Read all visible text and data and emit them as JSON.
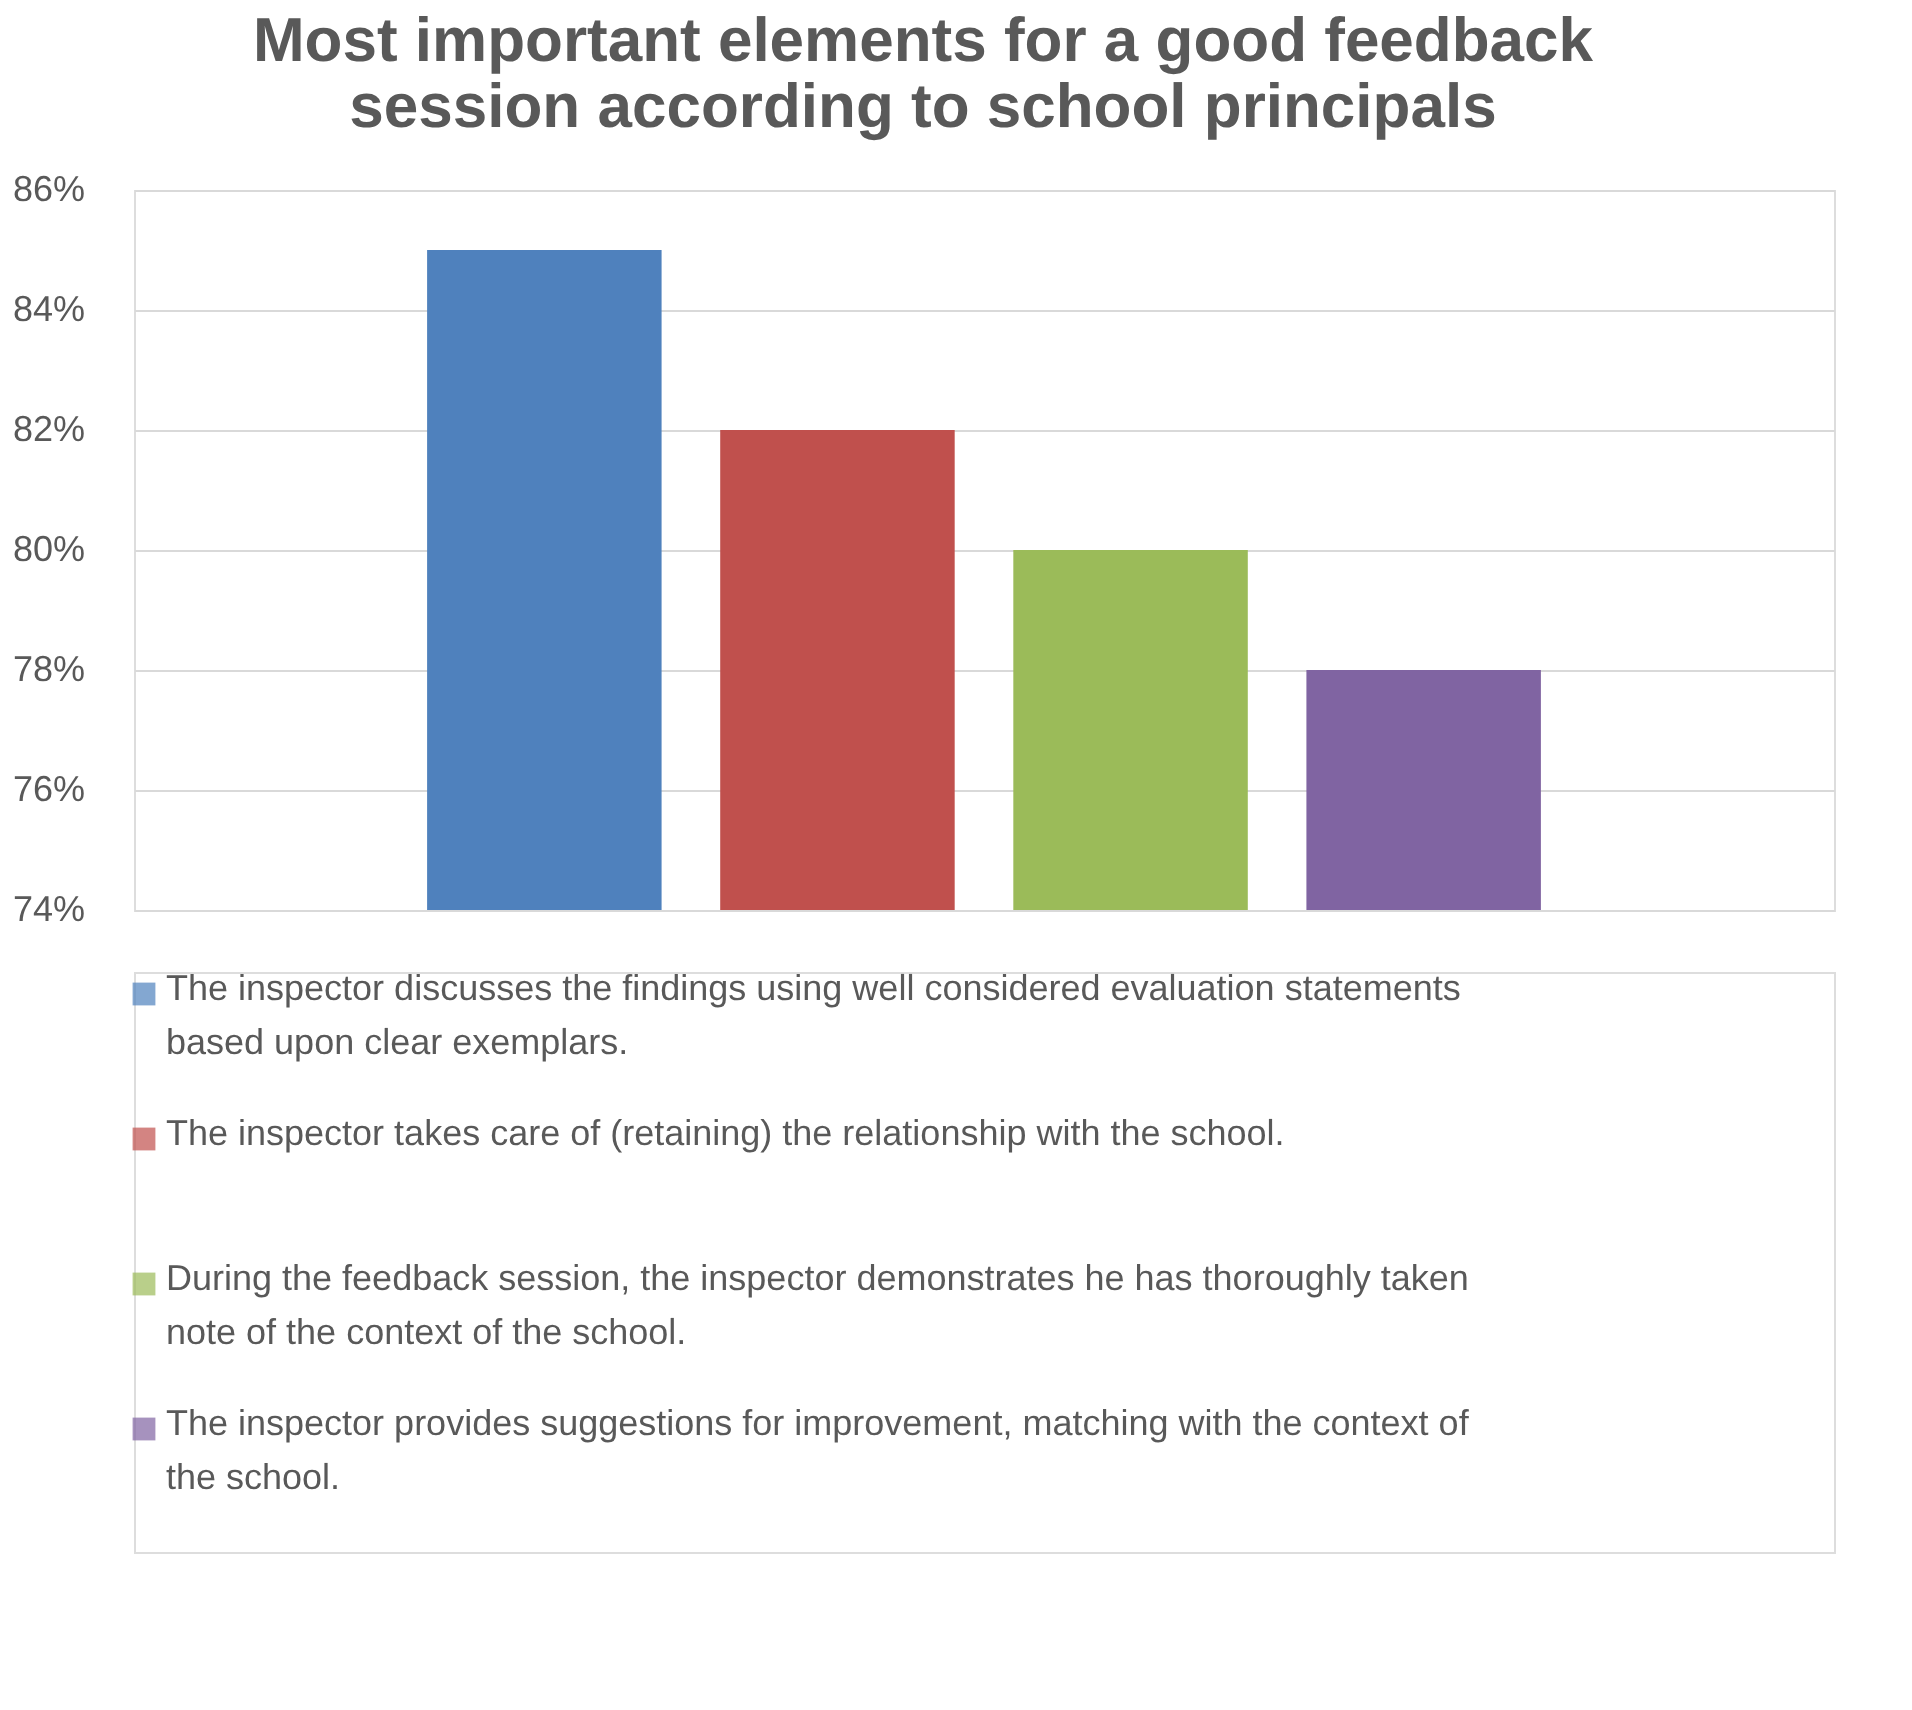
{
  "chart_data": {
    "type": "bar",
    "title": "Most important elements for a good feedback session according to school principals",
    "categories": [
      null
    ],
    "series": [
      {
        "name": "The inspector discusses the findings using well considered evaluation statements based upon clear exemplars.",
        "color": "#4f81bd",
        "values": [
          85
        ]
      },
      {
        "name": "The inspector takes care of (retaining) the relationship with the school.",
        "color": "#c0504d",
        "values": [
          82
        ]
      },
      {
        "name": "During the feedback session, the inspector demonstrates he has thoroughly taken note of the context of the school.",
        "color": "#9bbb59",
        "values": [
          80
        ]
      },
      {
        "name": "The inspector provides suggestions for improvement, matching with the context of the school.",
        "color": "#8064a2",
        "values": [
          78
        ]
      }
    ],
    "ylim": [
      74,
      86
    ],
    "yticks": [
      {
        "value": 74,
        "label": "74%"
      },
      {
        "value": 76,
        "label": "76%"
      },
      {
        "value": 78,
        "label": "78%"
      },
      {
        "value": 80,
        "label": "80%"
      },
      {
        "value": 82,
        "label": "82%"
      },
      {
        "value": 84,
        "label": "84%"
      },
      {
        "value": 86,
        "label": "86%"
      }
    ],
    "grid": "y",
    "legend": "bottom"
  }
}
